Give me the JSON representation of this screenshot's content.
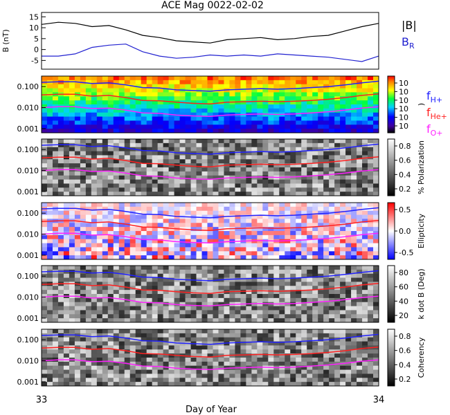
{
  "title": "ACE Mag 0022-02-02",
  "colors": {
    "H": "#2020ff",
    "He": "#ff2020",
    "O": "#ff20ff",
    "B_total": "#000000",
    "B_R": "#2020d0"
  },
  "legend": {
    "B_total": "|B|",
    "B_R_main": "B",
    "B_R_sub": "R",
    "fH_main": "f",
    "fH_sub": "H+",
    "fHe_main": "f",
    "fHe_sub": "He+",
    "fO_main": "f",
    "fO_sub": "O+"
  },
  "xaxis": {
    "label": "Day of Year",
    "start_label": "33",
    "end_label": "34"
  },
  "panels": [
    {
      "name": "field-panel",
      "ylabel": "B\n(nT)",
      "yticks": [
        "15",
        "10",
        "5",
        "0",
        "-5"
      ]
    },
    {
      "name": "power-panel",
      "yticks": [
        "0.100",
        "0.010",
        "0.001"
      ],
      "colorbar_ticks": [
        "10",
        "10",
        "10",
        "10",
        "10",
        "10"
      ],
      "colorbar_title": ")"
    },
    {
      "name": "polarization-panel",
      "yticks": [
        "0.100",
        "0.010",
        "0.001"
      ],
      "colorbar_ticks": [
        "0.8",
        "0.6",
        "0.4",
        "0.2"
      ],
      "colorbar_title": "% Polarization"
    },
    {
      "name": "ellipticity-panel",
      "yticks": [
        "0.100",
        "0.010",
        "0.001"
      ],
      "colorbar_ticks": [
        "0.5",
        "0.0",
        "-0.5"
      ],
      "colorbar_title": "Ellipticity"
    },
    {
      "name": "kdotb-panel",
      "yticks": [
        "0.100",
        "0.010",
        "0.001"
      ],
      "colorbar_ticks": [
        "80",
        "60",
        "40",
        "20"
      ],
      "colorbar_title": "k dot B (Deg)"
    },
    {
      "name": "coherency-panel",
      "yticks": [
        "0.100",
        "0.010",
        "0.001"
      ],
      "colorbar_ticks": [
        "0.8",
        "0.6",
        "0.4",
        "0.2"
      ],
      "colorbar_title": "Coherency"
    }
  ],
  "chart_data": {
    "type": "line",
    "title": "ACE Mag 0022-02-02",
    "xlabel": "Day of Year",
    "xlim": [
      33,
      34
    ],
    "field": {
      "ylim": [
        -9,
        17
      ],
      "series": [
        {
          "name": "|B|",
          "x": [
            33.0,
            33.05,
            33.1,
            33.15,
            33.2,
            33.25,
            33.3,
            33.35,
            33.4,
            33.45,
            33.5,
            33.55,
            33.6,
            33.65,
            33.7,
            33.75,
            33.8,
            33.85,
            33.9,
            33.95,
            34.0
          ],
          "values": [
            11.5,
            12.5,
            12.0,
            10.5,
            11.0,
            9.0,
            6.5,
            5.5,
            4.0,
            3.5,
            3.0,
            4.5,
            5.0,
            5.5,
            4.5,
            5.0,
            6.0,
            6.5,
            8.5,
            10.5,
            12.0
          ]
        },
        {
          "name": "B_R",
          "x": [
            33.0,
            33.05,
            33.1,
            33.15,
            33.2,
            33.25,
            33.3,
            33.35,
            33.4,
            33.45,
            33.5,
            33.55,
            33.6,
            33.65,
            33.7,
            33.75,
            33.8,
            33.85,
            33.9,
            33.95,
            34.0
          ],
          "values": [
            -3.0,
            -3.0,
            -2.0,
            1.0,
            2.0,
            2.5,
            -1.0,
            -3.0,
            -4.0,
            -3.5,
            -2.5,
            -3.0,
            -2.5,
            -3.0,
            -2.0,
            -2.5,
            -3.0,
            -3.5,
            -4.5,
            -5.5,
            -3.0
          ]
        }
      ]
    },
    "gyrofrequency": {
      "ylim_log10": [
        -3.2,
        -0.5
      ],
      "series": [
        {
          "name": "H+",
          "x": [
            33.0,
            33.05,
            33.1,
            33.15,
            33.2,
            33.25,
            33.3,
            33.35,
            33.4,
            33.45,
            33.5,
            33.55,
            33.6,
            33.65,
            33.7,
            33.75,
            33.8,
            33.85,
            33.9,
            33.95,
            34.0
          ],
          "values": [
            0.16,
            0.17,
            0.17,
            0.14,
            0.15,
            0.12,
            0.09,
            0.085,
            0.07,
            0.065,
            0.06,
            0.07,
            0.075,
            0.08,
            0.075,
            0.08,
            0.09,
            0.1,
            0.12,
            0.15,
            0.18
          ]
        },
        {
          "name": "He+",
          "x": [
            33.0,
            33.05,
            33.1,
            33.15,
            33.2,
            33.25,
            33.3,
            33.35,
            33.4,
            33.45,
            33.5,
            33.55,
            33.6,
            33.65,
            33.7,
            33.75,
            33.8,
            33.85,
            33.9,
            33.95,
            34.0
          ],
          "values": [
            0.04,
            0.043,
            0.043,
            0.035,
            0.038,
            0.03,
            0.022,
            0.021,
            0.018,
            0.016,
            0.015,
            0.018,
            0.019,
            0.02,
            0.019,
            0.02,
            0.022,
            0.025,
            0.03,
            0.038,
            0.045
          ]
        },
        {
          "name": "O+",
          "x": [
            33.0,
            33.05,
            33.1,
            33.15,
            33.2,
            33.25,
            33.3,
            33.35,
            33.4,
            33.45,
            33.5,
            33.55,
            33.6,
            33.65,
            33.7,
            33.75,
            33.8,
            33.85,
            33.9,
            33.95,
            34.0
          ],
          "values": [
            0.01,
            0.011,
            0.011,
            0.009,
            0.0095,
            0.0075,
            0.0056,
            0.0053,
            0.0044,
            0.004,
            0.0038,
            0.0044,
            0.0047,
            0.005,
            0.0047,
            0.005,
            0.0056,
            0.0063,
            0.0075,
            0.0095,
            0.011
          ]
        }
      ]
    }
  }
}
